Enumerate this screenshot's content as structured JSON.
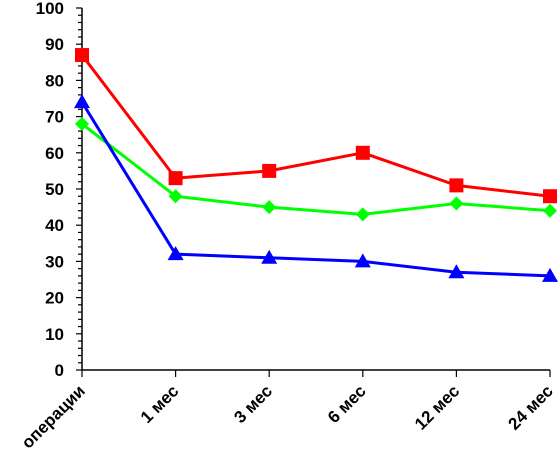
{
  "chart_data": {
    "type": "line",
    "categories": [
      "операции",
      "1 мес",
      "3 мес",
      "6 мес",
      "12 мес",
      "24 мес"
    ],
    "ylim": [
      0,
      100
    ],
    "yticks": [
      0,
      10,
      20,
      30,
      40,
      50,
      60,
      70,
      80,
      90,
      100
    ],
    "grid": false,
    "legend": "none",
    "series": [
      {
        "color": "#ff0000",
        "marker": "square",
        "values": [
          87,
          53,
          55,
          60,
          51,
          48
        ]
      },
      {
        "color": "#00ff00",
        "marker": "diamond",
        "values": [
          68,
          48,
          45,
          43,
          46,
          44
        ]
      },
      {
        "color": "#0000ff",
        "marker": "triangle",
        "values": [
          74,
          32,
          31,
          30,
          27,
          26
        ]
      }
    ]
  }
}
